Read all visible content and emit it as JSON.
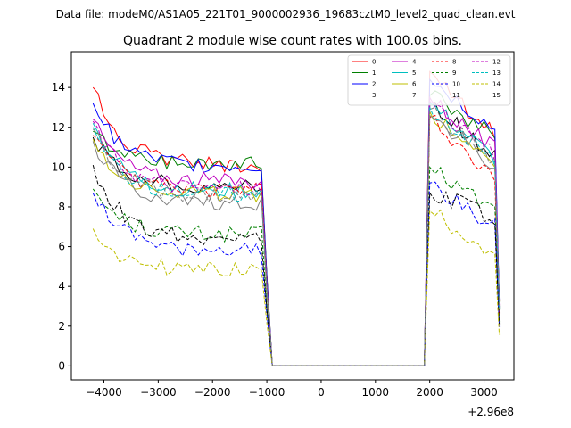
{
  "chart_data": {
    "type": "line",
    "suptitle": "Data file: modeM0/AS1A05_221T01_9000002936_19683cztM0_level2_quad_clean.evt",
    "title": "Quadrant 2 module wise count rates with 100.0s bins.",
    "xlabel": "",
    "ylabel": "",
    "x_offset_label": "+2.96e8",
    "xlim": [
      -4600,
      3550
    ],
    "ylim": [
      -0.7,
      15.8
    ],
    "xticks": [
      -4000,
      -3000,
      -2000,
      -1000,
      0,
      1000,
      2000,
      3000
    ],
    "xtick_labels": [
      "−4000",
      "−3000",
      "−2000",
      "−1000",
      "0",
      "1000",
      "2000",
      "3000"
    ],
    "yticks": [
      0,
      2,
      4,
      6,
      8,
      10,
      12,
      14
    ],
    "ytick_labels": [
      "0",
      "2",
      "4",
      "6",
      "8",
      "10",
      "12",
      "14"
    ],
    "legend_position": "top-right",
    "segments": [
      {
        "x_start": -4200,
        "x_end": -1100
      },
      {
        "x_start": 2000,
        "x_end": 3200
      }
    ],
    "gap": {
      "x_start": -900,
      "x_end": 1900,
      "value": 0
    },
    "series": [
      {
        "name": "0",
        "color": "#ff0000",
        "dashed": false,
        "start": 14.0,
        "plateau": 10.1,
        "post": 14.8,
        "post_end": 11.6
      },
      {
        "name": "1",
        "color": "#008000",
        "dashed": false,
        "start": 11.8,
        "plateau": 10.2,
        "post": 13.6,
        "post_end": 11.5
      },
      {
        "name": "2",
        "color": "#0000ff",
        "dashed": false,
        "start": 13.2,
        "plateau": 10.0,
        "post": 14.4,
        "post_end": 11.8
      },
      {
        "name": "3",
        "color": "#000000",
        "dashed": false,
        "start": 11.5,
        "plateau": 9.0,
        "post": 13.2,
        "post_end": 10.6
      },
      {
        "name": "4",
        "color": "#bf00bf",
        "dashed": false,
        "start": 12.4,
        "plateau": 9.3,
        "post": 13.5,
        "post_end": 10.9
      },
      {
        "name": "5",
        "color": "#00bfbf",
        "dashed": false,
        "start": 12.2,
        "plateau": 8.8,
        "post": 13.2,
        "post_end": 10.4
      },
      {
        "name": "6",
        "color": "#bfbf00",
        "dashed": false,
        "start": 11.4,
        "plateau": 8.6,
        "post": 12.8,
        "post_end": 10.2
      },
      {
        "name": "7",
        "color": "#808080",
        "dashed": false,
        "start": 11.3,
        "plateau": 8.2,
        "post": 12.6,
        "post_end": 10.0
      },
      {
        "name": "8",
        "color": "#ff0000",
        "dashed": true,
        "start": 11.6,
        "plateau": 8.8,
        "post": 12.5,
        "post_end": 9.2
      },
      {
        "name": "9",
        "color": "#008000",
        "dashed": true,
        "start": 8.9,
        "plateau": 6.6,
        "post": 10.0,
        "post_end": 7.8
      },
      {
        "name": "10",
        "color": "#0000ff",
        "dashed": true,
        "start": 8.7,
        "plateau": 5.8,
        "post": 9.2,
        "post_end": 7.0
      },
      {
        "name": "11",
        "color": "#000000",
        "dashed": true,
        "start": 10.1,
        "plateau": 6.4,
        "post": 8.7,
        "post_end": 7.5
      },
      {
        "name": "12",
        "color": "#bf00bf",
        "dashed": true,
        "start": 12.3,
        "plateau": 8.9,
        "post": 13.3,
        "post_end": 10.5
      },
      {
        "name": "13",
        "color": "#00bfbf",
        "dashed": true,
        "start": 12.0,
        "plateau": 8.6,
        "post": 13.0,
        "post_end": 10.3
      },
      {
        "name": "14",
        "color": "#bfbf00",
        "dashed": true,
        "start": 6.9,
        "plateau": 4.8,
        "post": 7.8,
        "post_end": 5.6
      },
      {
        "name": "15",
        "color": "#808080",
        "dashed": true,
        "start": 11.9,
        "plateau": 8.5,
        "post": 12.9,
        "post_end": 10.2
      }
    ]
  }
}
